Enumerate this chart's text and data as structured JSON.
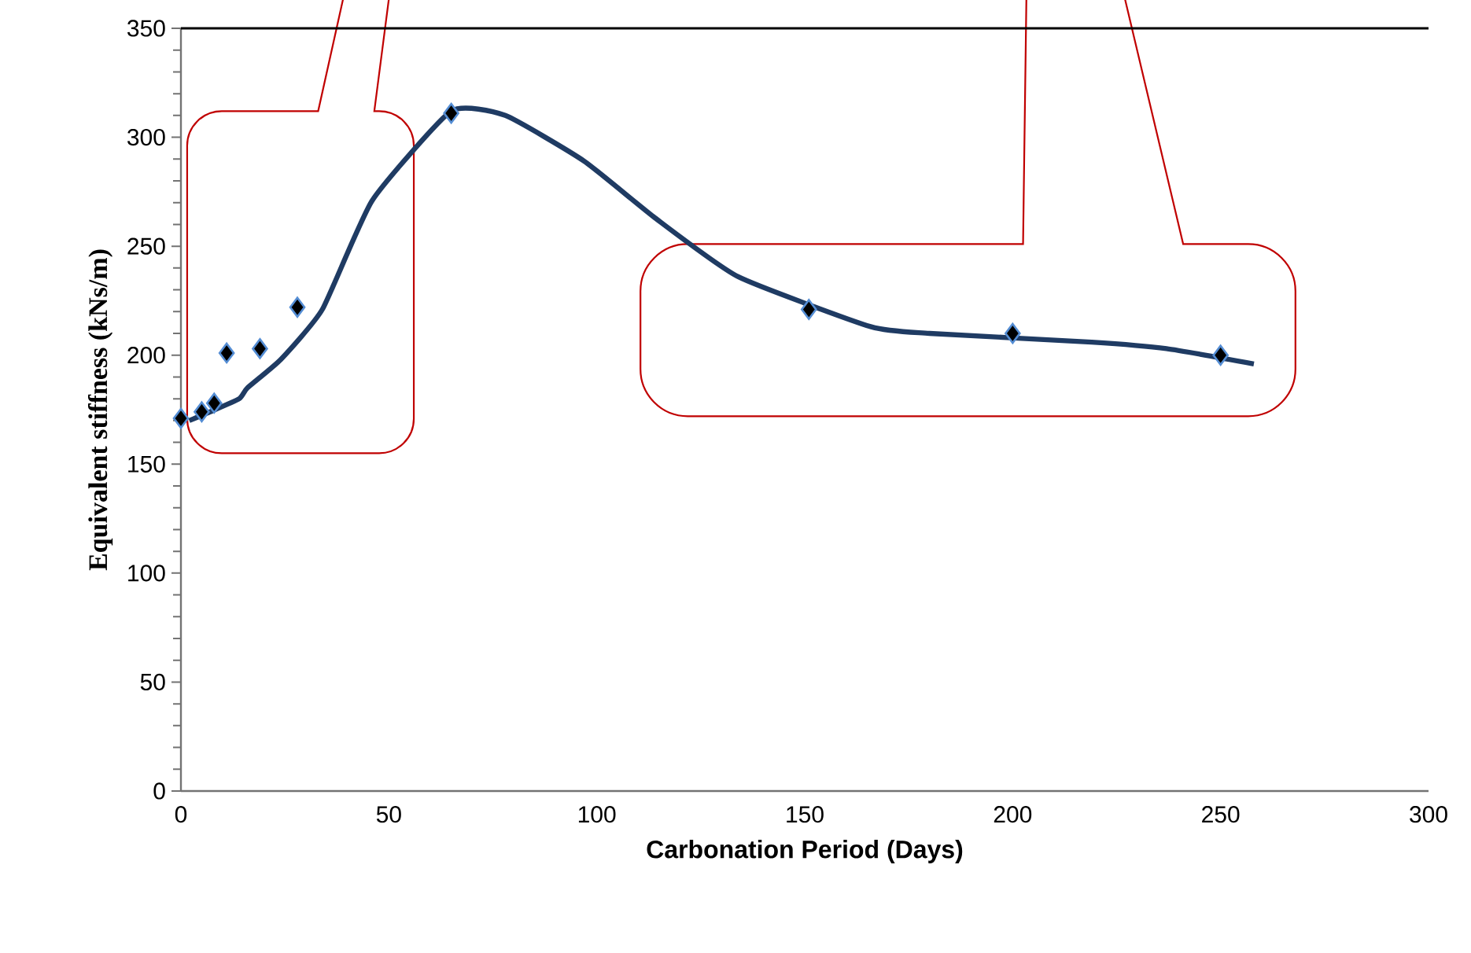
{
  "chart_data": {
    "type": "line",
    "xlabel": "Carbonation Period (Days)",
    "ylabel": "Equivalent stiffness (kNs/m)",
    "xlim": [
      0,
      300
    ],
    "xticks": [
      0,
      50,
      100,
      150,
      200,
      250,
      300
    ],
    "ylim": [
      0,
      350
    ],
    "yticks": [
      0,
      50,
      100,
      150,
      200,
      250,
      300,
      350
    ],
    "grid": false,
    "series": [
      {
        "color": "#1f3b63",
        "marker": "none",
        "line_style": "solid",
        "x": [
          2,
          7,
          14,
          16,
          24,
          34,
          46,
          65,
          78,
          97,
          114,
          134,
          166,
          180,
          219,
          237,
          258
        ],
        "values": [
          170,
          174,
          180,
          185,
          198,
          221,
          271,
          312,
          310,
          289,
          263,
          236,
          213,
          210,
          206,
          203,
          196
        ]
      },
      {
        "type": "scatter",
        "color": "#000000",
        "marker": "diamond",
        "x": [
          0,
          5,
          8,
          11,
          19,
          28,
          65,
          151,
          200,
          250
        ],
        "values": [
          171,
          174,
          178,
          201,
          203,
          222,
          311,
          221,
          210,
          200
        ]
      }
    ]
  }
}
